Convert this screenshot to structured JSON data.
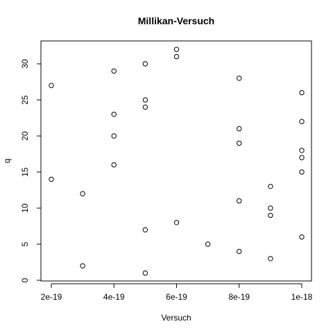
{
  "chart_data": {
    "type": "scatter",
    "title": "Millikan-Versuch",
    "xlabel": "Versuch",
    "ylabel": "q",
    "xlim": [
      2e-19,
      1e-18
    ],
    "ylim": [
      0,
      32
    ],
    "x_ticks": [
      {
        "value": 2e-19,
        "label": "2e-19"
      },
      {
        "value": 4e-19,
        "label": "4e-19"
      },
      {
        "value": 6e-19,
        "label": "6e-19"
      },
      {
        "value": 8e-19,
        "label": "8e-19"
      },
      {
        "value": 1e-18,
        "label": "1e-18"
      }
    ],
    "y_ticks": [
      {
        "value": 0,
        "label": "0"
      },
      {
        "value": 5,
        "label": "5"
      },
      {
        "value": 10,
        "label": "10"
      },
      {
        "value": 15,
        "label": "15"
      },
      {
        "value": 20,
        "label": "20"
      },
      {
        "value": 25,
        "label": "25"
      },
      {
        "value": 30,
        "label": "30"
      }
    ],
    "grid": false,
    "legend": "none",
    "marker": "open-circle",
    "points": [
      {
        "x": 2e-19,
        "y": 27
      },
      {
        "x": 2e-19,
        "y": 14
      },
      {
        "x": 3e-19,
        "y": 12
      },
      {
        "x": 3e-19,
        "y": 2
      },
      {
        "x": 4e-19,
        "y": 29
      },
      {
        "x": 4e-19,
        "y": 23
      },
      {
        "x": 4e-19,
        "y": 20
      },
      {
        "x": 4e-19,
        "y": 16
      },
      {
        "x": 5e-19,
        "y": 30
      },
      {
        "x": 5e-19,
        "y": 25
      },
      {
        "x": 5e-19,
        "y": 24
      },
      {
        "x": 5e-19,
        "y": 7
      },
      {
        "x": 5e-19,
        "y": 1
      },
      {
        "x": 6e-19,
        "y": 32
      },
      {
        "x": 6e-19,
        "y": 31
      },
      {
        "x": 6e-19,
        "y": 8
      },
      {
        "x": 7e-19,
        "y": 5
      },
      {
        "x": 8e-19,
        "y": 28
      },
      {
        "x": 8e-19,
        "y": 21
      },
      {
        "x": 8e-19,
        "y": 19
      },
      {
        "x": 8e-19,
        "y": 11
      },
      {
        "x": 8e-19,
        "y": 4
      },
      {
        "x": 9e-19,
        "y": 13
      },
      {
        "x": 9e-19,
        "y": 10
      },
      {
        "x": 9e-19,
        "y": 9
      },
      {
        "x": 9e-19,
        "y": 3
      },
      {
        "x": 1e-18,
        "y": 26
      },
      {
        "x": 1e-18,
        "y": 22
      },
      {
        "x": 1e-18,
        "y": 18
      },
      {
        "x": 1e-18,
        "y": 17
      },
      {
        "x": 1e-18,
        "y": 15
      },
      {
        "x": 1e-18,
        "y": 6
      }
    ]
  }
}
